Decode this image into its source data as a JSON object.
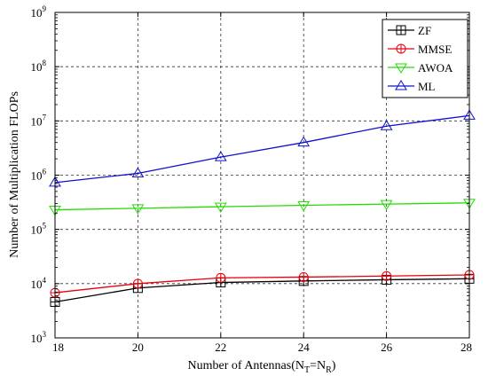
{
  "chart_data": {
    "type": "line",
    "xlabel": "Number of Antennas(N_T=N_R)",
    "ylabel": "Number of Multiplication FLOPs",
    "x": [
      18,
      20,
      22,
      24,
      26,
      28
    ],
    "xlim": [
      18,
      28
    ],
    "ylim": [
      1000,
      1000000000
    ],
    "yscale": "log",
    "grid": true,
    "legend_position": "top-right",
    "y_ticks": [
      {
        "base": "10",
        "exp": "3"
      },
      {
        "base": "10",
        "exp": "4"
      },
      {
        "base": "10",
        "exp": "5"
      },
      {
        "base": "10",
        "exp": "6"
      },
      {
        "base": "10",
        "exp": "7"
      },
      {
        "base": "10",
        "exp": "8"
      },
      {
        "base": "10",
        "exp": "9"
      }
    ],
    "series": [
      {
        "name": "ZF",
        "color": "#000000",
        "marker": "square-plus",
        "values": [
          4600,
          8300,
          10500,
          11200,
          11800,
          12300
        ]
      },
      {
        "name": "MMSE",
        "color": "#e8000b",
        "marker": "circle-plus",
        "values": [
          6800,
          10000,
          12800,
          13200,
          13800,
          14500
        ]
      },
      {
        "name": "AWOA",
        "color": "#22dd00",
        "marker": "triangle-down",
        "values": [
          230000,
          245000,
          262000,
          278000,
          293000,
          308000
        ]
      },
      {
        "name": "ML",
        "color": "#1010d0",
        "marker": "triangle-up",
        "values": [
          730000,
          1080000,
          2150000,
          4000000,
          8000000,
          12500000
        ]
      }
    ]
  }
}
